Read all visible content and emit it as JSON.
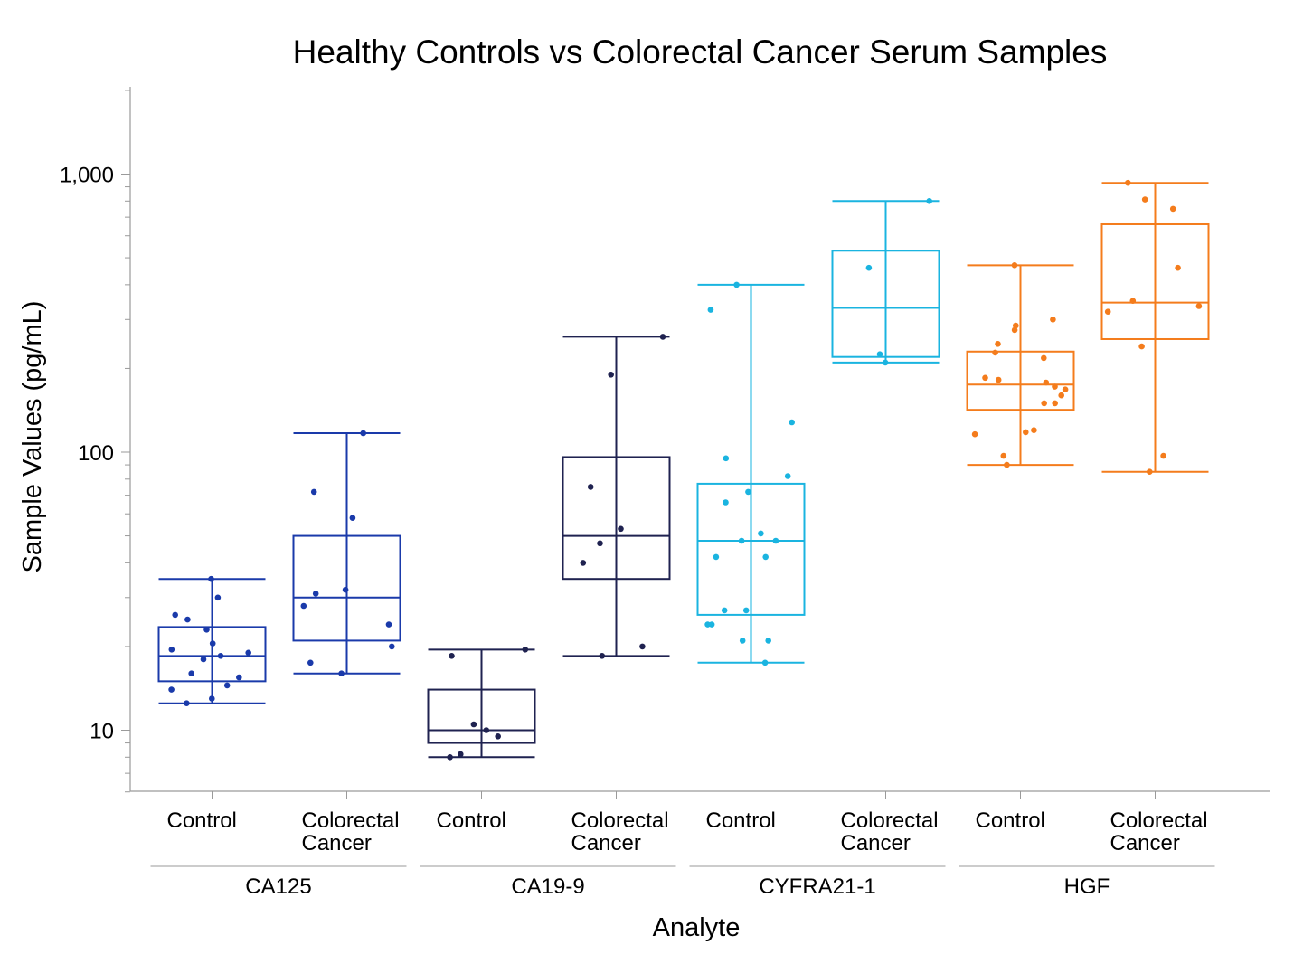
{
  "chart_data": {
    "type": "box",
    "title": "Healthy Controls vs Colorectal Cancer Serum Samples",
    "ylabel": "Sample Values (pg/mL)",
    "xlabel": "Analyte",
    "yscale": "log",
    "ylim": [
      6,
      2000
    ],
    "yticks": [
      {
        "value": 10,
        "label": "10"
      },
      {
        "value": 100,
        "label": "100"
      },
      {
        "value": 1000,
        "label": "1,000"
      }
    ],
    "grid": false,
    "legend": "none",
    "groups": [
      {
        "name": "CA125",
        "color": "#1a3aaa",
        "boxes": [
          {
            "category": "Control",
            "whisker_low": 12.5,
            "q1": 15,
            "median": 18.5,
            "q3": 23.5,
            "whisker_high": 35,
            "points": [
              35,
              30,
              26,
              25,
              23,
              20.5,
              19.5,
              19,
              18.5,
              18,
              16,
              15.5,
              14.5,
              14,
              13,
              12.5
            ]
          },
          {
            "category": "Colorectal Cancer",
            "whisker_low": 16,
            "q1": 21,
            "median": 30,
            "q3": 50,
            "whisker_high": 117,
            "points": [
              117,
              72,
              58,
              32,
              31,
              28,
              24,
              20,
              17.5,
              16
            ]
          }
        ]
      },
      {
        "name": "CA19-9",
        "color": "#1f2250",
        "boxes": [
          {
            "category": "Control",
            "whisker_low": 8,
            "q1": 9,
            "median": 10,
            "q3": 14,
            "whisker_high": 19.5,
            "points": [
              19.5,
              18.5,
              10.5,
              10,
              9.5,
              8.2,
              8
            ]
          },
          {
            "category": "Colorectal Cancer",
            "whisker_low": 18.5,
            "q1": 35,
            "median": 50,
            "q3": 96,
            "whisker_high": 260,
            "points": [
              260,
              190,
              75,
              53,
              47,
              40,
              20,
              18.5
            ]
          }
        ]
      },
      {
        "name": "CYFRA21-1",
        "color": "#1ab4e0",
        "boxes": [
          {
            "category": "Control",
            "whisker_low": 17.5,
            "q1": 26,
            "median": 48,
            "q3": 77,
            "whisker_high": 400,
            "points": [
              400,
              325,
              128,
              95,
              82,
              72,
              66,
              51,
              48,
              48,
              42,
              42,
              27,
              27,
              24,
              24,
              21,
              21,
              17.5
            ]
          },
          {
            "category": "Colorectal Cancer",
            "whisker_low": 210,
            "q1": 220,
            "median": 330,
            "q3": 530,
            "whisker_high": 800,
            "points": [
              800,
              460,
              225,
              210
            ]
          }
        ]
      },
      {
        "name": "HGF",
        "color": "#f47c1c",
        "boxes": [
          {
            "category": "Control",
            "whisker_low": 90,
            "q1": 142,
            "median": 175,
            "q3": 230,
            "whisker_high": 470,
            "points": [
              470,
              300,
              285,
              275,
              245,
              228,
              218,
              185,
              182,
              178,
              172,
              168,
              160,
              150,
              150,
              120,
              118,
              116,
              97,
              90
            ]
          },
          {
            "category": "Colorectal Cancer",
            "whisker_low": 85,
            "q1": 255,
            "median": 345,
            "q3": 660,
            "whisker_high": 930,
            "points": [
              930,
              810,
              750,
              460,
              350,
              335,
              320,
              240,
              97,
              85
            ]
          }
        ]
      }
    ]
  }
}
